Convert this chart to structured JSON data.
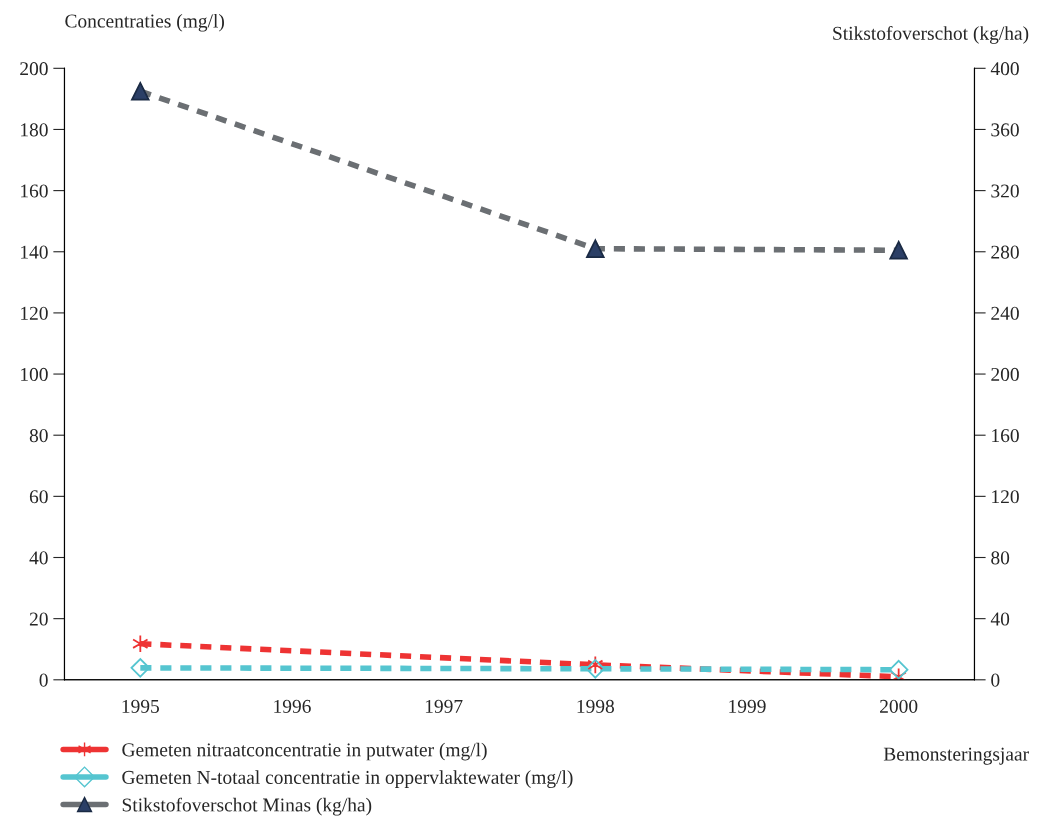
{
  "chart_data": {
    "type": "line",
    "ylabel": "Concentraties (mg/l)",
    "y2label": "Stikstofoverschot (kg/ha)",
    "xlabel": "Bemonsteringsjaar",
    "xlim": [
      1994.5,
      2000.5
    ],
    "xticks": [
      1995,
      1996,
      1997,
      1998,
      1999,
      2000
    ],
    "ylim": [
      0,
      200
    ],
    "yticks": [
      0,
      20,
      40,
      60,
      80,
      100,
      120,
      140,
      160,
      180,
      200
    ],
    "y2lim": [
      0,
      400
    ],
    "y2ticks": [
      0,
      40,
      80,
      120,
      160,
      200,
      240,
      280,
      320,
      360,
      400
    ],
    "line_style": "dashed",
    "grid": false,
    "legend": "bottom",
    "series": [
      {
        "name": "Gemeten nitraatconcentratie in putwater (mg/l)",
        "color": "#ee3333",
        "marker": "cross",
        "x": [
          1995,
          1998,
          2000
        ],
        "values": [
          11.8,
          4.9,
          1
        ]
      },
      {
        "name": "Gemeten N-totaal concentratie in oppervlaktewater (mg/l)",
        "color": "#55c5d0",
        "marker": "diamond",
        "x": [
          1995,
          1998,
          2000
        ],
        "values": [
          3.9,
          3.6,
          3.3
        ]
      },
      {
        "name": "Stikstofoverschot Minas (kg/ha)",
        "color": "#6b6f73",
        "marker": "triangle",
        "axis": "y2",
        "x": [
          1995,
          1998,
          2000
        ],
        "values": [
          385,
          282,
          281
        ]
      }
    ]
  }
}
